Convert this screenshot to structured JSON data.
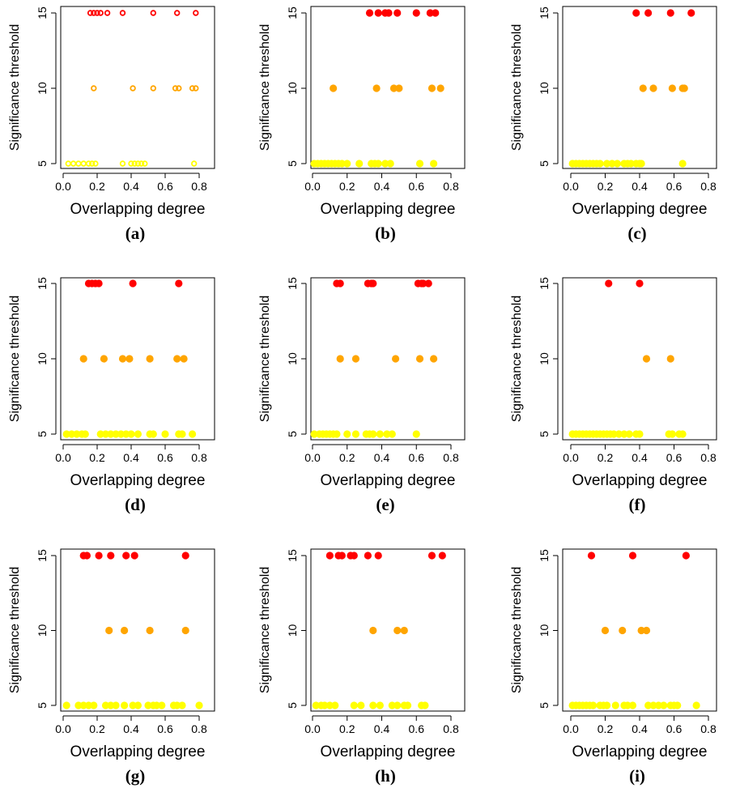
{
  "colors": {
    "t15": "#ff0000",
    "t10": "#ffa500",
    "t5": "#ffff00",
    "axis": "#000000"
  },
  "chart_data": [
    {
      "type": "scatter",
      "panel": "(a)",
      "xlabel": "Overlapping degree",
      "ylabel": "Significance threshold",
      "xlim": [
        0,
        0.9
      ],
      "ylim": [
        5,
        15
      ],
      "xticks": [
        "0.0",
        "0.2",
        "0.4",
        "0.6",
        "0.8"
      ],
      "yticks": [
        "5",
        "10",
        "15"
      ],
      "marker": "open-circle",
      "series": [
        {
          "y": 15,
          "x": [
            0.16,
            0.18,
            0.2,
            0.22,
            0.26,
            0.35,
            0.53,
            0.67,
            0.78
          ]
        },
        {
          "y": 10,
          "x": [
            0.18,
            0.41,
            0.53,
            0.66,
            0.68,
            0.76,
            0.78
          ]
        },
        {
          "y": 5,
          "x": [
            0.03,
            0.06,
            0.09,
            0.12,
            0.15,
            0.17,
            0.19,
            0.35,
            0.4,
            0.42,
            0.44,
            0.46,
            0.48,
            0.77
          ]
        }
      ]
    },
    {
      "type": "scatter",
      "panel": "(b)",
      "xlabel": "Overlapping degree",
      "ylabel": "Significance threshold",
      "xlim": [
        0,
        0.9
      ],
      "ylim": [
        5,
        15
      ],
      "xticks": [
        "0.0",
        "0.2",
        "0.4",
        "0.6",
        "0.8"
      ],
      "yticks": [
        "5",
        "10",
        "15"
      ],
      "marker": "filled-circle",
      "series": [
        {
          "y": 15,
          "x": [
            0.33,
            0.38,
            0.42,
            0.44,
            0.49,
            0.6,
            0.68,
            0.71
          ]
        },
        {
          "y": 10,
          "x": [
            0.12,
            0.37,
            0.47,
            0.5,
            0.69,
            0.74
          ]
        },
        {
          "y": 5,
          "x": [
            0.01,
            0.03,
            0.05,
            0.07,
            0.09,
            0.11,
            0.13,
            0.15,
            0.17,
            0.2,
            0.27,
            0.34,
            0.36,
            0.38,
            0.42,
            0.45,
            0.62,
            0.7
          ]
        }
      ]
    },
    {
      "type": "scatter",
      "panel": "(c)",
      "xlabel": "Overlapping degree",
      "ylabel": "Significance threshold",
      "xlim": [
        0,
        0.9
      ],
      "ylim": [
        5,
        15
      ],
      "xticks": [
        "0.0",
        "0.2",
        "0.4",
        "0.6",
        "0.8"
      ],
      "yticks": [
        "5",
        "10",
        "15"
      ],
      "marker": "filled-circle",
      "series": [
        {
          "y": 15,
          "x": [
            0.38,
            0.45,
            0.58,
            0.7
          ]
        },
        {
          "y": 10,
          "x": [
            0.42,
            0.48,
            0.59,
            0.65,
            0.66
          ]
        },
        {
          "y": 5,
          "x": [
            0.01,
            0.03,
            0.05,
            0.07,
            0.09,
            0.11,
            0.13,
            0.15,
            0.17,
            0.21,
            0.24,
            0.27,
            0.31,
            0.33,
            0.35,
            0.38,
            0.4,
            0.41,
            0.65
          ]
        }
      ]
    },
    {
      "type": "scatter",
      "panel": "(d)",
      "xlabel": "Overlapping degree",
      "ylabel": "Significance threshold",
      "xlim": [
        0,
        0.9
      ],
      "ylim": [
        5,
        15
      ],
      "xticks": [
        "0.0",
        "0.2",
        "0.4",
        "0.6",
        "0.8"
      ],
      "yticks": [
        "5",
        "10",
        "15"
      ],
      "marker": "filled-circle",
      "series": [
        {
          "y": 15,
          "x": [
            0.15,
            0.17,
            0.19,
            0.21,
            0.41,
            0.68
          ]
        },
        {
          "y": 10,
          "x": [
            0.12,
            0.24,
            0.35,
            0.39,
            0.51,
            0.67,
            0.71
          ]
        },
        {
          "y": 5,
          "x": [
            0.02,
            0.05,
            0.08,
            0.11,
            0.13,
            0.22,
            0.25,
            0.28,
            0.31,
            0.34,
            0.37,
            0.4,
            0.44,
            0.51,
            0.53,
            0.6,
            0.68,
            0.7,
            0.76
          ]
        }
      ]
    },
    {
      "type": "scatter",
      "panel": "(e)",
      "xlabel": "Overlapping degree",
      "ylabel": "Significance threshold",
      "xlim": [
        0,
        0.9
      ],
      "ylim": [
        5,
        15
      ],
      "xticks": [
        "0.0",
        "0.2",
        "0.4",
        "0.6",
        "0.8"
      ],
      "yticks": [
        "5",
        "10",
        "15"
      ],
      "marker": "filled-circle",
      "series": [
        {
          "y": 15,
          "x": [
            0.14,
            0.16,
            0.32,
            0.34,
            0.35,
            0.61,
            0.63,
            0.64,
            0.67
          ]
        },
        {
          "y": 10,
          "x": [
            0.16,
            0.25,
            0.48,
            0.62,
            0.7
          ]
        },
        {
          "y": 5,
          "x": [
            0.01,
            0.04,
            0.06,
            0.08,
            0.1,
            0.12,
            0.14,
            0.2,
            0.25,
            0.31,
            0.33,
            0.35,
            0.39,
            0.43,
            0.46,
            0.6
          ]
        }
      ]
    },
    {
      "type": "scatter",
      "panel": "(f)",
      "xlabel": "Overlapping degree",
      "ylabel": "Significance threshold",
      "xlim": [
        0,
        0.9
      ],
      "ylim": [
        5,
        15
      ],
      "xticks": [
        "0.0",
        "0.2",
        "0.4",
        "0.6",
        "0.8"
      ],
      "yticks": [
        "5",
        "10",
        "15"
      ],
      "marker": "filled-circle",
      "series": [
        {
          "y": 15,
          "x": [
            0.22,
            0.4
          ]
        },
        {
          "y": 10,
          "x": [
            0.44,
            0.58
          ]
        },
        {
          "y": 5,
          "x": [
            0.01,
            0.03,
            0.05,
            0.07,
            0.09,
            0.11,
            0.13,
            0.15,
            0.17,
            0.19,
            0.21,
            0.23,
            0.25,
            0.28,
            0.31,
            0.34,
            0.38,
            0.4,
            0.57,
            0.59,
            0.63,
            0.65
          ]
        }
      ]
    },
    {
      "type": "scatter",
      "panel": "(g)",
      "xlabel": "Overlapping degree",
      "ylabel": "Significance threshold",
      "xlim": [
        0,
        0.9
      ],
      "ylim": [
        5,
        15
      ],
      "xticks": [
        "0.0",
        "0.2",
        "0.4",
        "0.6",
        "0.8"
      ],
      "yticks": [
        "5",
        "10",
        "15"
      ],
      "marker": "filled-circle",
      "series": [
        {
          "y": 15,
          "x": [
            0.12,
            0.14,
            0.21,
            0.28,
            0.37,
            0.42,
            0.72
          ]
        },
        {
          "y": 10,
          "x": [
            0.27,
            0.36,
            0.51,
            0.72
          ]
        },
        {
          "y": 5,
          "x": [
            0.02,
            0.09,
            0.12,
            0.15,
            0.18,
            0.25,
            0.28,
            0.31,
            0.36,
            0.41,
            0.44,
            0.5,
            0.53,
            0.55,
            0.58,
            0.65,
            0.67,
            0.7,
            0.8
          ]
        }
      ]
    },
    {
      "type": "scatter",
      "panel": "(h)",
      "xlabel": "Overlapping degree",
      "ylabel": "Significance threshold",
      "xlim": [
        0,
        0.9
      ],
      "ylim": [
        5,
        15
      ],
      "xticks": [
        "0.0",
        "0.2",
        "0.4",
        "0.6",
        "0.8"
      ],
      "yticks": [
        "5",
        "10",
        "15"
      ],
      "marker": "filled-circle",
      "series": [
        {
          "y": 15,
          "x": [
            0.1,
            0.15,
            0.17,
            0.22,
            0.24,
            0.32,
            0.38,
            0.69,
            0.75
          ]
        },
        {
          "y": 10,
          "x": [
            0.35,
            0.49,
            0.53
          ]
        },
        {
          "y": 5,
          "x": [
            0.02,
            0.05,
            0.07,
            0.1,
            0.13,
            0.24,
            0.28,
            0.35,
            0.39,
            0.46,
            0.49,
            0.53,
            0.55,
            0.63,
            0.65
          ]
        }
      ]
    },
    {
      "type": "scatter",
      "panel": "(i)",
      "xlabel": "Overlapping degree",
      "ylabel": "Significance threshold",
      "xlim": [
        0,
        0.9
      ],
      "ylim": [
        5,
        15
      ],
      "xticks": [
        "0.0",
        "0.2",
        "0.4",
        "0.6",
        "0.8"
      ],
      "yticks": [
        "5",
        "10",
        "15"
      ],
      "marker": "filled-circle",
      "series": [
        {
          "y": 15,
          "x": [
            0.12,
            0.36,
            0.67
          ]
        },
        {
          "y": 10,
          "x": [
            0.2,
            0.3,
            0.41,
            0.44
          ]
        },
        {
          "y": 5,
          "x": [
            0.01,
            0.03,
            0.05,
            0.07,
            0.09,
            0.11,
            0.13,
            0.17,
            0.19,
            0.21,
            0.26,
            0.31,
            0.33,
            0.36,
            0.45,
            0.48,
            0.51,
            0.54,
            0.58,
            0.6,
            0.62,
            0.73
          ]
        }
      ]
    }
  ]
}
